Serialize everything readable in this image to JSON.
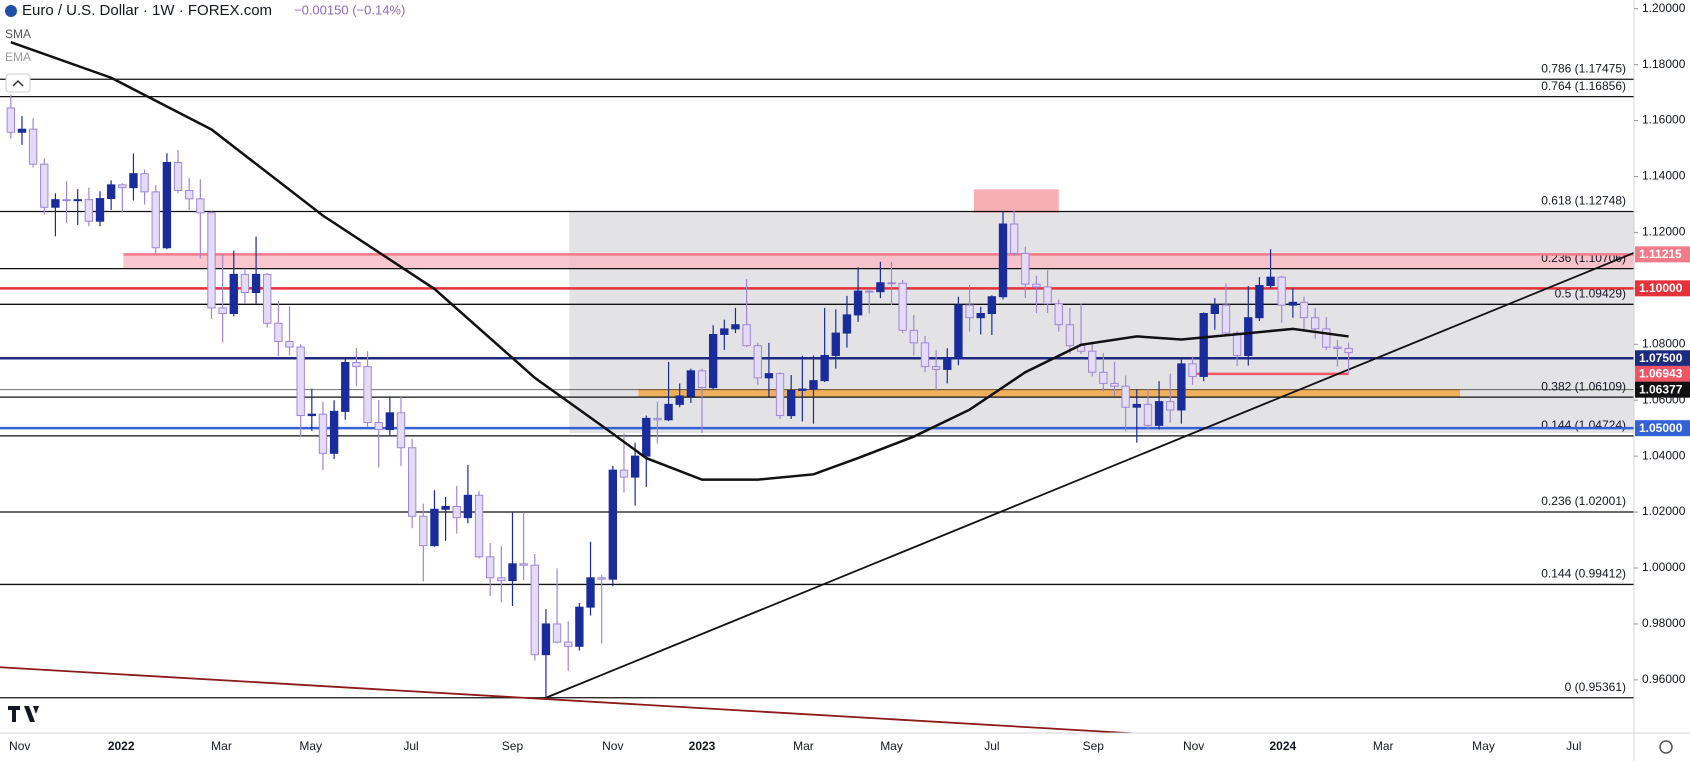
{
  "chart_data": {
    "type": "candlestick",
    "title": "Euro / U.S. Dollar · 1W · FOREX.com",
    "change": "−0.00150 (−0.14%)",
    "indicators": [
      "SMA",
      "EMA"
    ],
    "up_color": "#1a2c9c",
    "down_color": "#e4dcf6",
    "down_border": "#9f86d8",
    "xlim": [
      -0.97,
      145.6
    ],
    "ylim": [
      0.941,
      1.2031
    ],
    "yticks": [
      {
        "value": 1.2,
        "label": "1.20000"
      },
      {
        "value": 1.18,
        "label": "1.18000"
      },
      {
        "value": 1.16,
        "label": "1.16000"
      },
      {
        "value": 1.14,
        "label": "1.14000"
      },
      {
        "value": 1.12,
        "label": "1.12000"
      },
      {
        "value": 1.1,
        "label": "1.10000"
      },
      {
        "value": 1.08,
        "label": "1.08000"
      },
      {
        "value": 1.06,
        "label": "1.06000"
      },
      {
        "value": 1.04,
        "label": "1.04000"
      },
      {
        "value": 1.02,
        "label": "1.02000"
      },
      {
        "value": 1,
        "label": "1.00000"
      },
      {
        "value": 0.98,
        "label": "0.98000"
      },
      {
        "value": 0.96,
        "label": "0.96000"
      }
    ],
    "xticks": [
      {
        "value": 0.8,
        "label": "Nov"
      },
      {
        "value": 9.9,
        "label": "2022"
      },
      {
        "value": 18.9,
        "label": "Mar"
      },
      {
        "value": 26.9,
        "label": "May"
      },
      {
        "value": 35.9,
        "label": "Jul"
      },
      {
        "value": 45,
        "label": "Sep"
      },
      {
        "value": 54,
        "label": "Nov"
      },
      {
        "value": 62,
        "label": "2023"
      },
      {
        "value": 71.1,
        "label": "Mar"
      },
      {
        "value": 79,
        "label": "May"
      },
      {
        "value": 88,
        "label": "Jul"
      },
      {
        "value": 97.1,
        "label": "Sep"
      },
      {
        "value": 106.1,
        "label": "Nov"
      },
      {
        "value": 114.1,
        "label": "2024"
      },
      {
        "value": 123.1,
        "label": "Mar"
      },
      {
        "value": 132.1,
        "label": "May"
      },
      {
        "value": 140.2,
        "label": "Jul"
      }
    ],
    "candles": [
      [
        1.1645,
        1.1692,
        1.1535,
        1.1558
      ],
      [
        1.1558,
        1.1616,
        1.1513,
        1.1569
      ],
      [
        1.1569,
        1.1608,
        1.1432,
        1.1444
      ],
      [
        1.1444,
        1.1464,
        1.1264,
        1.129
      ],
      [
        1.129,
        1.134,
        1.1186,
        1.1317
      ],
      [
        1.1317,
        1.1383,
        1.1234,
        1.1315
      ],
      [
        1.1315,
        1.1355,
        1.1227,
        1.1317
      ],
      [
        1.1317,
        1.136,
        1.1222,
        1.124
      ],
      [
        1.124,
        1.1347,
        1.1222,
        1.1321
      ],
      [
        1.1321,
        1.1386,
        1.128,
        1.137
      ],
      [
        1.137,
        1.1376,
        1.1273,
        1.136
      ],
      [
        1.136,
        1.1482,
        1.1314,
        1.141
      ],
      [
        1.141,
        1.1425,
        1.13,
        1.1345
      ],
      [
        1.1345,
        1.1369,
        1.1121,
        1.1145
      ],
      [
        1.1145,
        1.1483,
        1.114,
        1.145
      ],
      [
        1.145,
        1.1495,
        1.134,
        1.135
      ],
      [
        1.135,
        1.1395,
        1.128,
        1.132
      ],
      [
        1.132,
        1.139,
        1.1106,
        1.127
      ],
      [
        1.127,
        1.1275,
        1.089,
        1.093
      ],
      [
        1.093,
        1.1121,
        1.0806,
        1.091
      ],
      [
        1.091,
        1.1135,
        1.09,
        1.105
      ],
      [
        1.105,
        1.107,
        1.0945,
        1.0985
      ],
      [
        1.0985,
        1.1185,
        1.0945,
        1.105
      ],
      [
        1.105,
        1.1055,
        1.086,
        1.0875
      ],
      [
        1.0875,
        1.0955,
        1.0757,
        1.081
      ],
      [
        1.081,
        1.0936,
        1.076,
        1.079
      ],
      [
        1.079,
        1.08,
        1.0471,
        1.0545
      ],
      [
        1.0545,
        1.0641,
        1.049,
        1.055
      ],
      [
        1.055,
        1.0595,
        1.035,
        1.041
      ],
      [
        1.041,
        1.06,
        1.039,
        1.056
      ],
      [
        1.056,
        1.075,
        1.053,
        1.0735
      ],
      [
        1.0735,
        1.0787,
        1.065,
        1.072
      ],
      [
        1.072,
        1.0775,
        1.0505,
        1.052
      ],
      [
        1.052,
        1.0601,
        1.0359,
        1.0495
      ],
      [
        1.0495,
        1.0614,
        1.047,
        1.0555
      ],
      [
        1.0555,
        1.0615,
        1.0365,
        1.043
      ],
      [
        1.043,
        1.0462,
        1.0142,
        1.0185
      ],
      [
        1.0185,
        1.023,
        0.9952,
        1.008
      ],
      [
        1.008,
        1.0278,
        1.0076,
        1.021
      ],
      [
        1.021,
        1.0254,
        1.0097,
        1.022
      ],
      [
        1.022,
        1.0294,
        1.0123,
        1.018
      ],
      [
        1.018,
        1.0368,
        1.016,
        1.026
      ],
      [
        1.026,
        1.0275,
        1.0034,
        1.004
      ],
      [
        1.004,
        1.009,
        0.99,
        0.9965
      ],
      [
        0.9965,
        1.0079,
        0.9877,
        0.9955
      ],
      [
        0.9955,
        1.0198,
        0.9864,
        1.0015
      ],
      [
        1.0015,
        1.0197,
        0.9956,
        1.001
      ],
      [
        1.001,
        1.005,
        0.9669,
        0.969
      ],
      [
        0.969,
        0.9853,
        0.9536,
        0.98
      ],
      [
        0.98,
        0.9999,
        0.973,
        0.9735
      ],
      [
        0.9735,
        0.9809,
        0.9632,
        0.972
      ],
      [
        0.972,
        0.9875,
        0.9705,
        0.986
      ],
      [
        0.986,
        1.0094,
        0.983,
        0.9965
      ],
      [
        0.9965,
        0.9976,
        0.973,
        0.996
      ],
      [
        0.996,
        1.0365,
        0.9935,
        1.035
      ],
      [
        1.035,
        1.0481,
        1.027,
        1.0325
      ],
      [
        1.0325,
        1.0448,
        1.0223,
        1.04
      ],
      [
        1.04,
        1.0545,
        1.029,
        1.0535
      ],
      [
        1.0535,
        1.0595,
        1.0445,
        1.053
      ],
      [
        1.053,
        1.0737,
        1.0525,
        1.0585
      ],
      [
        1.0585,
        1.066,
        1.0575,
        1.0615
      ],
      [
        1.0615,
        1.0713,
        1.059,
        1.0705
      ],
      [
        1.0705,
        1.0713,
        1.0483,
        1.0645
      ],
      [
        1.0645,
        1.0868,
        1.064,
        1.0835
      ],
      [
        1.0835,
        1.0888,
        1.078,
        1.0855
      ],
      [
        1.0855,
        1.093,
        1.084,
        1.087
      ],
      [
        1.087,
        1.1033,
        1.079,
        1.0795
      ],
      [
        1.0795,
        1.0806,
        1.0655,
        1.068
      ],
      [
        1.068,
        1.0805,
        1.0613,
        1.0695
      ],
      [
        1.0695,
        1.07,
        1.0533,
        1.0545
      ],
      [
        1.0545,
        1.069,
        1.0533,
        1.0635
      ],
      [
        1.0635,
        1.0759,
        1.0524,
        1.064
      ],
      [
        1.064,
        1.076,
        1.0516,
        1.067
      ],
      [
        1.067,
        1.093,
        1.0665,
        1.076
      ],
      [
        1.076,
        1.0925,
        1.0713,
        1.084
      ],
      [
        1.084,
        1.0973,
        1.0788,
        1.0905
      ],
      [
        1.0905,
        1.1075,
        1.088,
        1.099
      ],
      [
        1.099,
        1.0995,
        1.091,
        1.0988
      ],
      [
        1.0988,
        1.1095,
        1.0965,
        1.102
      ],
      [
        1.102,
        1.1095,
        1.094,
        1.1018
      ],
      [
        1.1018,
        1.103,
        1.084,
        1.085
      ],
      [
        1.085,
        1.0905,
        1.076,
        1.0805
      ],
      [
        1.0805,
        1.083,
        1.07,
        1.072
      ],
      [
        1.072,
        1.078,
        1.0635,
        1.071
      ],
      [
        1.071,
        1.0786,
        1.066,
        1.075
      ],
      [
        1.075,
        1.097,
        1.0725,
        1.094
      ],
      [
        1.094,
        1.1012,
        1.0845,
        1.0895
      ],
      [
        1.0895,
        1.0934,
        1.0835,
        1.091
      ],
      [
        1.091,
        1.0975,
        1.0833,
        1.097
      ],
      [
        1.097,
        1.1275,
        1.096,
        1.123
      ],
      [
        1.123,
        1.1276,
        1.1115,
        1.1125
      ],
      [
        1.1125,
        1.1149,
        1.0965,
        1.1015
      ],
      [
        1.1015,
        1.1045,
        1.0912,
        1.1005
      ],
      [
        1.1005,
        1.1065,
        1.0912,
        1.0945
      ],
      [
        1.0945,
        1.096,
        1.0845,
        1.087
      ],
      [
        1.087,
        1.093,
        1.0765,
        1.0795
      ],
      [
        1.0795,
        1.0945,
        1.0765,
        1.0775
      ],
      [
        1.0775,
        1.081,
        1.0685,
        1.07
      ],
      [
        1.07,
        1.0768,
        1.063,
        1.066
      ],
      [
        1.066,
        1.0737,
        1.0615,
        1.065
      ],
      [
        1.065,
        1.0688,
        1.0488,
        1.0575
      ],
      [
        1.0575,
        1.064,
        1.0448,
        1.0585
      ],
      [
        1.0585,
        1.064,
        1.0496,
        1.051
      ],
      [
        1.051,
        1.0668,
        1.0495,
        1.0595
      ],
      [
        1.0595,
        1.0695,
        1.052,
        1.0565
      ],
      [
        1.0565,
        1.0745,
        1.0516,
        1.073
      ],
      [
        1.073,
        1.0756,
        1.0655,
        1.0685
      ],
      [
        1.0685,
        1.0914,
        1.0668,
        1.091
      ],
      [
        1.091,
        1.0965,
        1.0852,
        1.094
      ],
      [
        1.094,
        1.1017,
        1.0828,
        1.084
      ],
      [
        1.084,
        1.0848,
        1.0723,
        1.076
      ],
      [
        1.076,
        1.1008,
        1.0724,
        1.0895
      ],
      [
        1.0895,
        1.104,
        1.0883,
        1.101
      ],
      [
        1.101,
        1.114,
        1.1,
        1.104
      ],
      [
        1.104,
        1.1045,
        1.0877,
        1.094
      ],
      [
        1.094,
        1.1,
        1.0895,
        1.095
      ],
      [
        1.095,
        1.097,
        1.0845,
        1.0895
      ],
      [
        1.0895,
        1.093,
        1.082,
        1.0855
      ],
      [
        1.0855,
        1.0897,
        1.078,
        1.079
      ],
      [
        1.079,
        1.0815,
        1.072,
        1.0785
      ],
      [
        1.0785,
        1.0805,
        1.0695,
        1.077
      ]
    ],
    "sma": {
      "color": "#111111",
      "x": [
        0,
        9,
        18,
        28,
        38,
        47,
        53,
        57,
        62,
        67,
        72,
        76,
        81,
        86,
        91,
        96,
        101,
        105,
        110,
        115,
        120
      ],
      "values": [
        1.188,
        1.1753,
        1.1568,
        1.126,
        1.0998,
        1.068,
        1.0509,
        1.0393,
        1.0316,
        1.0316,
        1.0335,
        1.0393,
        1.047,
        1.0566,
        1.07,
        1.0798,
        1.0828,
        1.0817,
        1.0836,
        1.0855,
        1.0828
      ]
    },
    "zones": [
      {
        "color": "#d9d9dd",
        "x": [
          50.1,
          145.6
        ],
        "y": [
          1.0482,
          1.1275
        ]
      },
      {
        "color": "#f7b9c0",
        "x": [
          10.1,
          145.6
        ],
        "y": [
          1.107,
          1.1121
        ]
      },
      {
        "color": "#f0a23a",
        "x": [
          56.3,
          130
        ],
        "y": [
          1.061,
          1.064
        ]
      },
      {
        "color": "#f59aa3",
        "x": [
          86.4,
          94
        ],
        "y": [
          1.127,
          1.1354
        ]
      }
    ],
    "trendlines": [
      {
        "color": "#111111",
        "x": [
          48,
          150.7
        ],
        "y": [
          0.9536,
          1.121
        ]
      },
      {
        "color": "#8b1a1a",
        "x": [
          -0.97,
          101.5
        ],
        "y": [
          0.9645,
          0.9407
        ]
      }
    ],
    "fib_levels": [
      {
        "value": 1.17475,
        "label": "0.786 (1.17475)"
      },
      {
        "value": 1.16856,
        "label": "0.764 (1.16856)"
      },
      {
        "value": 1.12748,
        "label": "0.618 (1.12748)"
      },
      {
        "value": 1.10706,
        "label": "0.236 (1.10706)"
      },
      {
        "value": 1.09429,
        "label": "0.5 (1.09429)"
      },
      {
        "value": 1.06109,
        "label": "0.382 (1.06109)"
      },
      {
        "value": 1.04724,
        "label": "0.144 (1.04724)"
      },
      {
        "value": 1.02001,
        "label": "0.236 (1.02001)"
      },
      {
        "value": 0.99412,
        "label": "0.144 (0.99412)"
      },
      {
        "value": 0.95361,
        "label": "0 (0.95361)"
      }
    ],
    "levels": [
      {
        "value": 1.11215,
        "label": "1.11215",
        "color": "#f27b8a",
        "x": [
          10.1,
          145.6
        ]
      },
      {
        "value": 1.1,
        "label": "1.10000",
        "color": "#e5323a",
        "x": [
          -0.97,
          145.6
        ]
      },
      {
        "value": 1.075,
        "label": "1.07500",
        "color": "#1c2a80",
        "x": [
          -0.97,
          145.6
        ]
      },
      {
        "value": 1.06943,
        "label": "1.06943",
        "color": "#f05566",
        "x": [
          106,
          120
        ]
      },
      {
        "value": 1.06377,
        "label": "1.06377",
        "color": "#111111",
        "x": [
          -0.97,
          145.6
        ]
      },
      {
        "value": 1.05,
        "label": "1.05000",
        "color": "#3262d6",
        "x": [
          -0.97,
          145.6
        ]
      }
    ]
  }
}
